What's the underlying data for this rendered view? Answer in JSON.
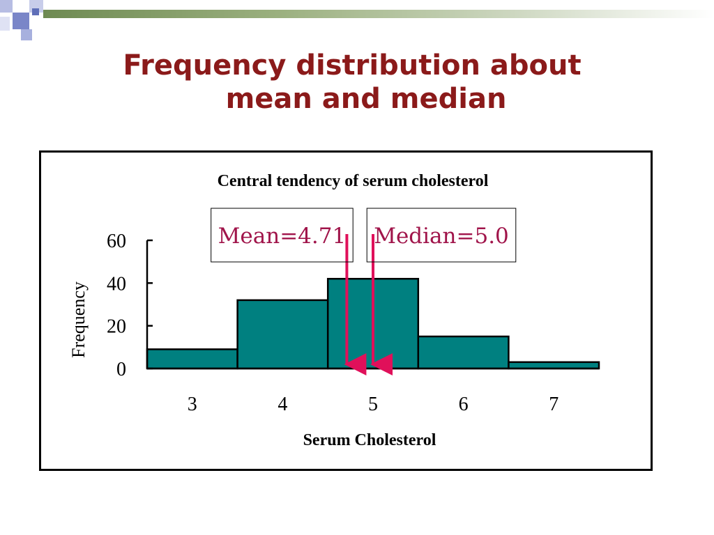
{
  "slide": {
    "title_line1": "Frequency distribution about",
    "title_line2": "mean and median",
    "title_color": "#8b1a1a"
  },
  "chart_data": {
    "type": "bar",
    "title": "Central tendency of serum cholesterol",
    "xlabel": "Serum Cholesterol",
    "ylabel": "Frequency",
    "categories": [
      "3",
      "4",
      "5",
      "6",
      "7"
    ],
    "values": [
      9,
      32,
      42,
      15,
      3
    ],
    "ylim": [
      0,
      60
    ],
    "yticks": [
      0,
      20,
      40,
      60
    ],
    "grid": false,
    "bar_color": "#008080",
    "annotations": [
      {
        "text": "Mean=4.71",
        "value": 4.71,
        "arrow_color": "#e0105a"
      },
      {
        "text": "Median=5.0",
        "value": 5.0,
        "arrow_color": "#e0105a"
      }
    ]
  }
}
